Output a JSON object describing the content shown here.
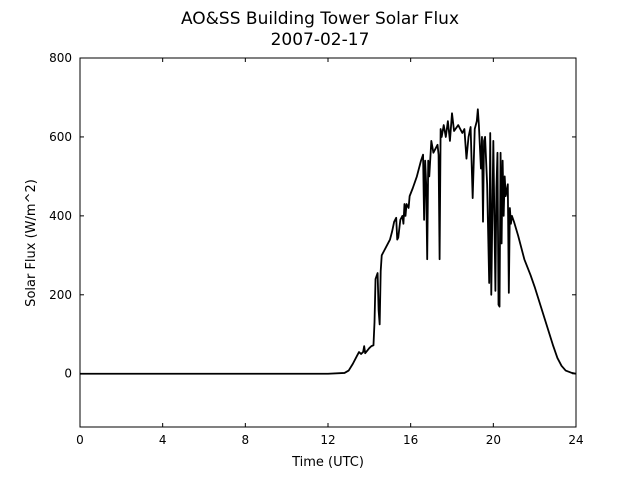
{
  "chart_data": {
    "type": "line",
    "title": "AO&SS Building Tower Solar Flux",
    "subtitle": "2007-02-17",
    "xlabel": "Time (UTC)",
    "ylabel": "Solar Flux (W/m^2)",
    "xlim": [
      0,
      24
    ],
    "xticks": [
      0,
      4,
      8,
      12,
      16,
      20,
      24
    ],
    "ylim": [
      -135,
      800
    ],
    "yticks": [
      0,
      200,
      400,
      600,
      800
    ],
    "grid": false,
    "x": [
      0,
      12,
      12.8,
      13.0,
      13.2,
      13.4,
      13.5,
      13.6,
      13.7,
      13.75,
      13.8,
      14.0,
      14.1,
      14.2,
      14.25,
      14.3,
      14.4,
      14.45,
      14.5,
      14.55,
      14.6,
      14.7,
      14.8,
      15.0,
      15.1,
      15.2,
      15.3,
      15.35,
      15.4,
      15.5,
      15.6,
      15.65,
      15.7,
      15.75,
      15.8,
      15.9,
      15.95,
      16.1,
      16.3,
      16.5,
      16.6,
      16.65,
      16.7,
      16.75,
      16.8,
      16.85,
      16.9,
      17.0,
      17.1,
      17.3,
      17.35,
      17.4,
      17.45,
      17.5,
      17.6,
      17.7,
      17.8,
      17.9,
      18.0,
      18.1,
      18.3,
      18.5,
      18.6,
      18.7,
      18.8,
      18.9,
      19.0,
      19.1,
      19.2,
      19.25,
      19.3,
      19.4,
      19.45,
      19.5,
      19.55,
      19.6,
      19.7,
      19.8,
      19.85,
      19.9,
      20.0,
      20.1,
      20.15,
      20.2,
      20.25,
      20.3,
      20.35,
      20.4,
      20.45,
      20.5,
      20.55,
      20.6,
      20.7,
      20.75,
      20.8,
      20.85,
      20.9,
      21.0,
      21.2,
      21.5,
      21.8,
      22.0,
      22.3,
      22.6,
      22.9,
      23.1,
      23.3,
      23.5,
      23.8,
      24
    ],
    "series": [
      {
        "color": "#000000",
        "values": [
          0,
          0,
          2,
          8,
          25,
          45,
          55,
          50,
          55,
          70,
          52,
          65,
          70,
          72,
          130,
          240,
          255,
          160,
          125,
          260,
          300,
          310,
          320,
          340,
          360,
          385,
          395,
          340,
          345,
          390,
          400,
          380,
          430,
          400,
          430,
          420,
          450,
          470,
          500,
          540,
          555,
          390,
          540,
          480,
          290,
          540,
          500,
          590,
          560,
          580,
          555,
          290,
          620,
          600,
          630,
          600,
          640,
          590,
          660,
          615,
          630,
          610,
          620,
          545,
          600,
          625,
          445,
          620,
          640,
          670,
          630,
          520,
          600,
          385,
          590,
          600,
          480,
          230,
          610,
          200,
          590,
          210,
          470,
          560,
          175,
          170,
          560,
          330,
          540,
          400,
          500,
          450,
          480,
          205,
          420,
          380,
          400,
          385,
          350,
          290,
          250,
          220,
          170,
          120,
          70,
          40,
          20,
          8,
          2,
          0
        ]
      }
    ]
  }
}
